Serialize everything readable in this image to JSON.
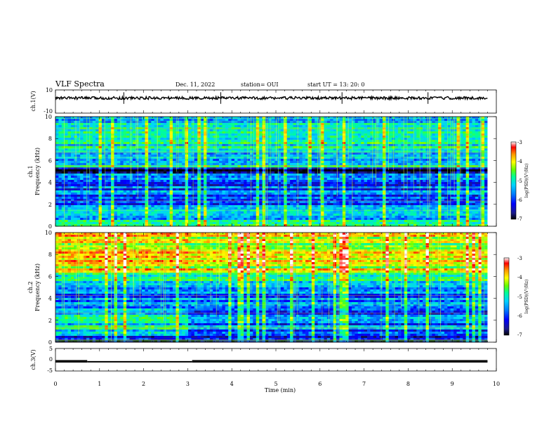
{
  "header": {
    "title": "VLF Spectra",
    "date": "Dec. 11, 2022",
    "station": "station= OUI",
    "start": "start  UT  =   13: 20: 0"
  },
  "colors": {
    "background": "#ffffff",
    "axis": "#000000",
    "colormap": [
      "#000000",
      "#1a1a8a",
      "#0000ff",
      "#0078ff",
      "#00d2ff",
      "#00ff96",
      "#64ff00",
      "#ffff00",
      "#ff9600",
      "#ff0000",
      "#ffffff"
    ]
  },
  "chart_data": [
    {
      "id": "ch1-waveform",
      "type": "line",
      "ylabel": "ch.1(V)",
      "ylim": [
        -10,
        10
      ],
      "yticks": [
        10,
        -10
      ],
      "xlim": [
        0,
        10
      ],
      "description_series": "waveform baseline near 3 V with small noise; spikes near t=1.55, 3.75, 6.5, 8.45 min",
      "baseline": 3,
      "spikes": [
        1.55,
        3.75,
        6.5,
        8.45
      ]
    },
    {
      "id": "ch1-spectrogram",
      "type": "heatmap",
      "ylabel": "ch.1\nFrequency (kHz)",
      "ylabel_line1": "ch.1",
      "ylabel_line2": "Frequency (kHz)",
      "ylim": [
        0,
        10
      ],
      "yticks": [
        "0",
        "2",
        "4",
        "6",
        "8",
        "10"
      ],
      "xlim": [
        0,
        9.8
      ],
      "colorbar": {
        "label": "log(PSD)(V²/Hz)",
        "ticks": [
          "-3",
          "-4",
          "-5",
          "-6",
          "-7"
        ],
        "range": [
          -7,
          -3
        ]
      }
    },
    {
      "id": "ch2-spectrogram",
      "type": "heatmap",
      "ylabel_line1": "ch.2",
      "ylabel_line2": "Frequency (kHz)",
      "ylim": [
        0,
        10
      ],
      "yticks": [
        "0",
        "2",
        "4",
        "6",
        "8",
        "10"
      ],
      "xlim": [
        0,
        9.8
      ],
      "colorbar": {
        "label": "log(PSD)(V²/Hz)",
        "ticks": [
          "-3",
          "-4",
          "-5",
          "-6",
          "-7"
        ],
        "range": [
          -7,
          -3
        ]
      }
    },
    {
      "id": "ch3-waveform",
      "type": "line",
      "ylabel": "ch.3(V)",
      "ylim": [
        -5,
        5
      ],
      "yticks": [
        "5",
        "0",
        "-5"
      ],
      "xlim": [
        0,
        10
      ],
      "steps": [
        {
          "x0": 0,
          "x1": 0.72,
          "y": -0.7
        },
        {
          "x0": 0.72,
          "x1": 3.1,
          "y": -0.9
        },
        {
          "x0": 3.1,
          "x1": 9.8,
          "y": -0.7
        }
      ]
    }
  ],
  "xaxis": {
    "label": "Time (min)",
    "ticks": [
      "0",
      "1",
      "2",
      "3",
      "4",
      "5",
      "6",
      "7",
      "8",
      "9",
      "10"
    ],
    "range": [
      0,
      10
    ]
  }
}
